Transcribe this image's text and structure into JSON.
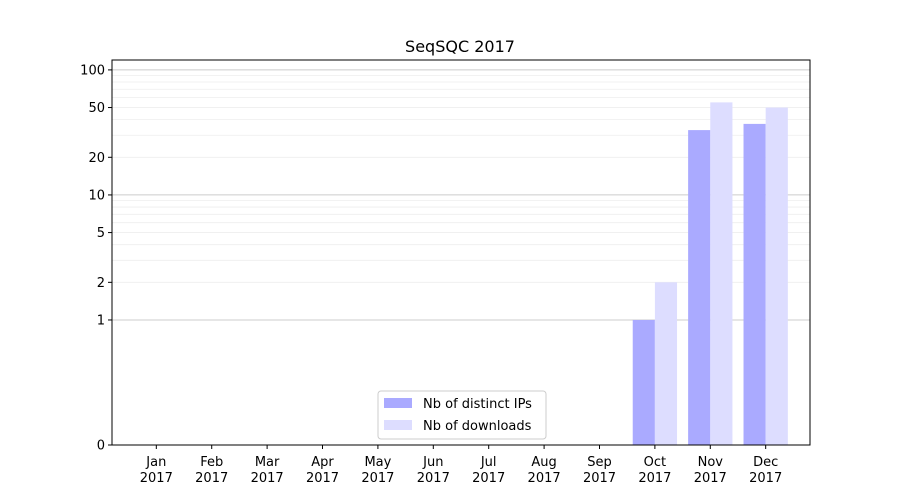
{
  "chart_data": {
    "type": "bar",
    "title": "SeqSQC 2017",
    "xlabel": "",
    "ylabel": "",
    "yscale": "symlog",
    "ylim": [
      0,
      120
    ],
    "yticks": [
      0,
      1,
      2,
      5,
      10,
      20,
      50,
      100
    ],
    "grid": "horizontal",
    "legend_position": "bottom-center",
    "categories": [
      {
        "month": "Jan",
        "year": "2017"
      },
      {
        "month": "Feb",
        "year": "2017"
      },
      {
        "month": "Mar",
        "year": "2017"
      },
      {
        "month": "Apr",
        "year": "2017"
      },
      {
        "month": "May",
        "year": "2017"
      },
      {
        "month": "Jun",
        "year": "2017"
      },
      {
        "month": "Jul",
        "year": "2017"
      },
      {
        "month": "Aug",
        "year": "2017"
      },
      {
        "month": "Sep",
        "year": "2017"
      },
      {
        "month": "Oct",
        "year": "2017"
      },
      {
        "month": "Nov",
        "year": "2017"
      },
      {
        "month": "Dec",
        "year": "2017"
      }
    ],
    "series": [
      {
        "name": "Nb of distinct IPs",
        "color": "#aaaaff",
        "values": [
          0,
          0,
          0,
          0,
          0,
          0,
          0,
          0,
          0,
          1,
          33,
          37
        ]
      },
      {
        "name": "Nb of downloads",
        "color": "#ddddff",
        "values": [
          0,
          0,
          0,
          0,
          0,
          0,
          0,
          0,
          0,
          2,
          55,
          50
        ]
      }
    ]
  }
}
